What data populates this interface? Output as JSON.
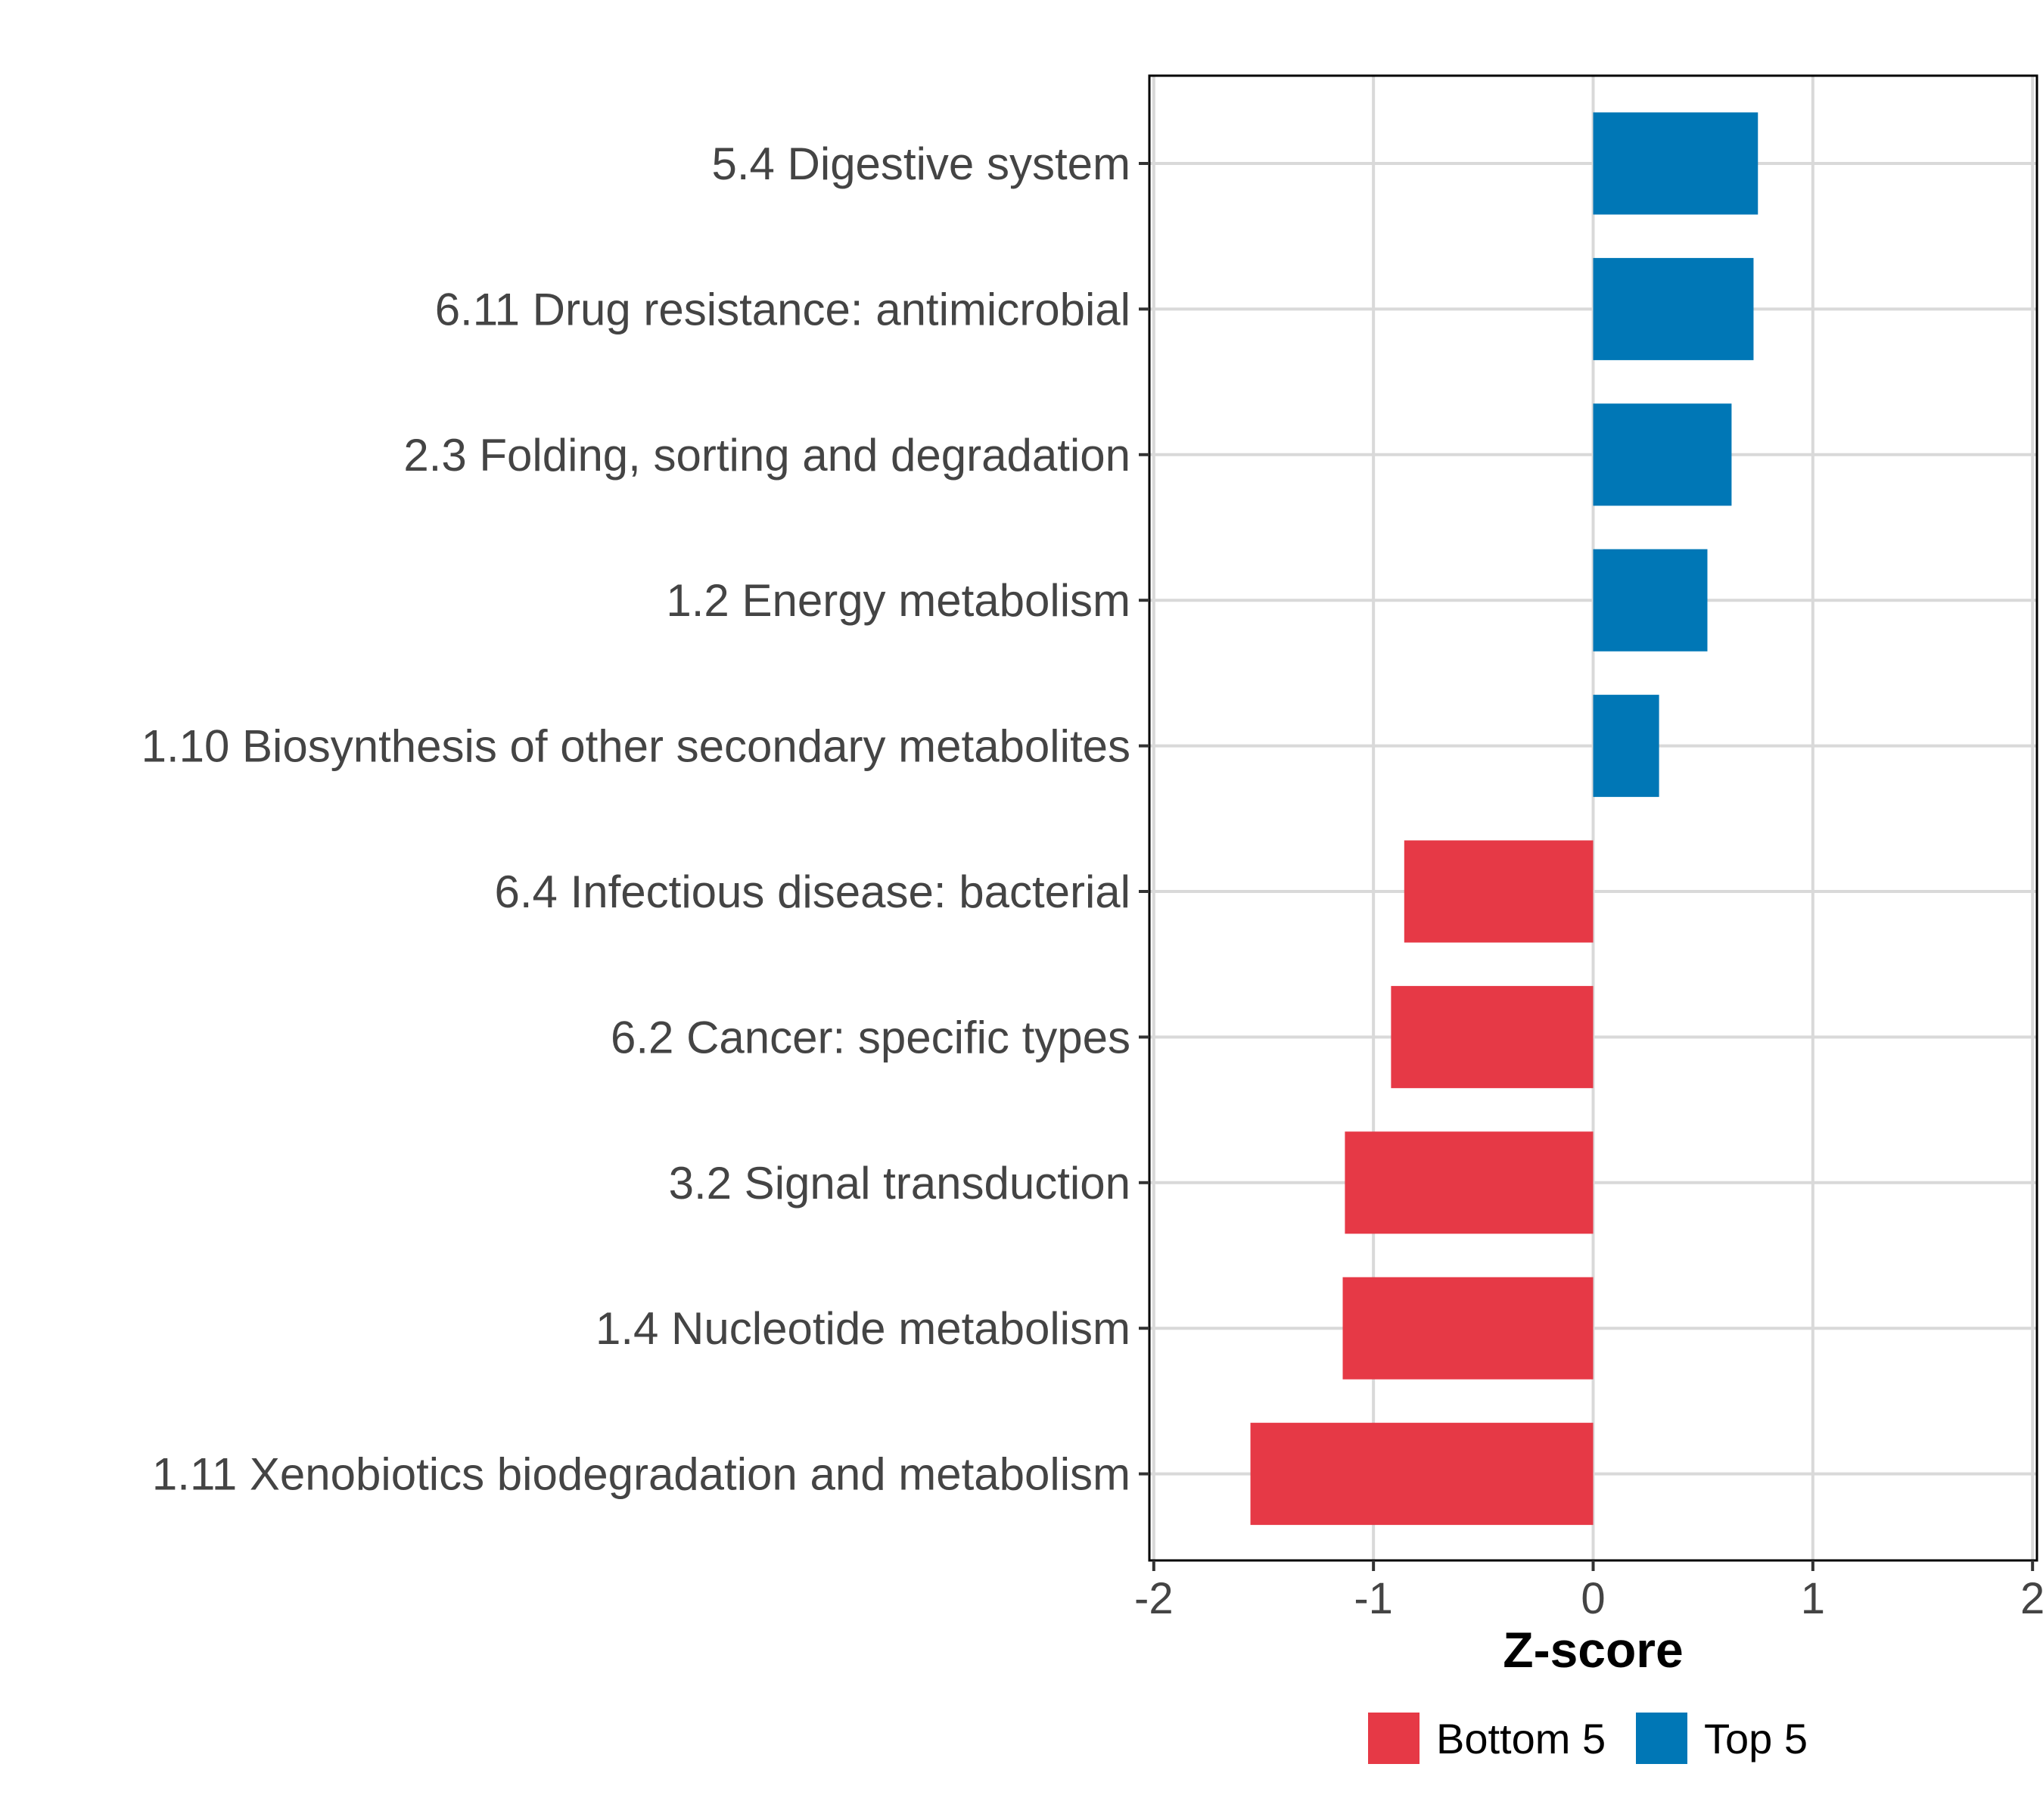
{
  "chart_data": {
    "type": "bar",
    "orientation": "horizontal",
    "title": "",
    "xlabel": "Z-score",
    "ylabel": "",
    "xlim": [
      -2.02,
      2.02
    ],
    "xticks": [
      -2,
      -1,
      0,
      1,
      2
    ],
    "xtick_labels": [
      "-2",
      "-1",
      "0",
      "1",
      "2"
    ],
    "grid": true,
    "legend_position": "bottom",
    "categories": [
      "5.4 Digestive system",
      "6.11 Drug resistance: antimicrobial",
      "2.3 Folding, sorting and degradation",
      "1.2 Energy metabolism",
      "1.10 Biosynthesis of other secondary metabolites",
      "6.4 Infectious disease: bacterial",
      "6.2 Cancer: specific types",
      "3.2 Signal transduction",
      "1.4 Nucleotide metabolism",
      "1.11 Xenobiotics biodegradation and metabolism"
    ],
    "values": [
      0.75,
      0.73,
      0.63,
      0.52,
      0.3,
      -0.86,
      -0.92,
      -1.13,
      -1.14,
      -1.56
    ],
    "groups": [
      "Top 5",
      "Top 5",
      "Top 5",
      "Top 5",
      "Top 5",
      "Bottom 5",
      "Bottom 5",
      "Bottom 5",
      "Bottom 5",
      "Bottom 5"
    ],
    "legend": [
      {
        "name": "Bottom 5",
        "color": "#e63946"
      },
      {
        "name": "Top 5",
        "color": "#0077b6"
      }
    ]
  }
}
